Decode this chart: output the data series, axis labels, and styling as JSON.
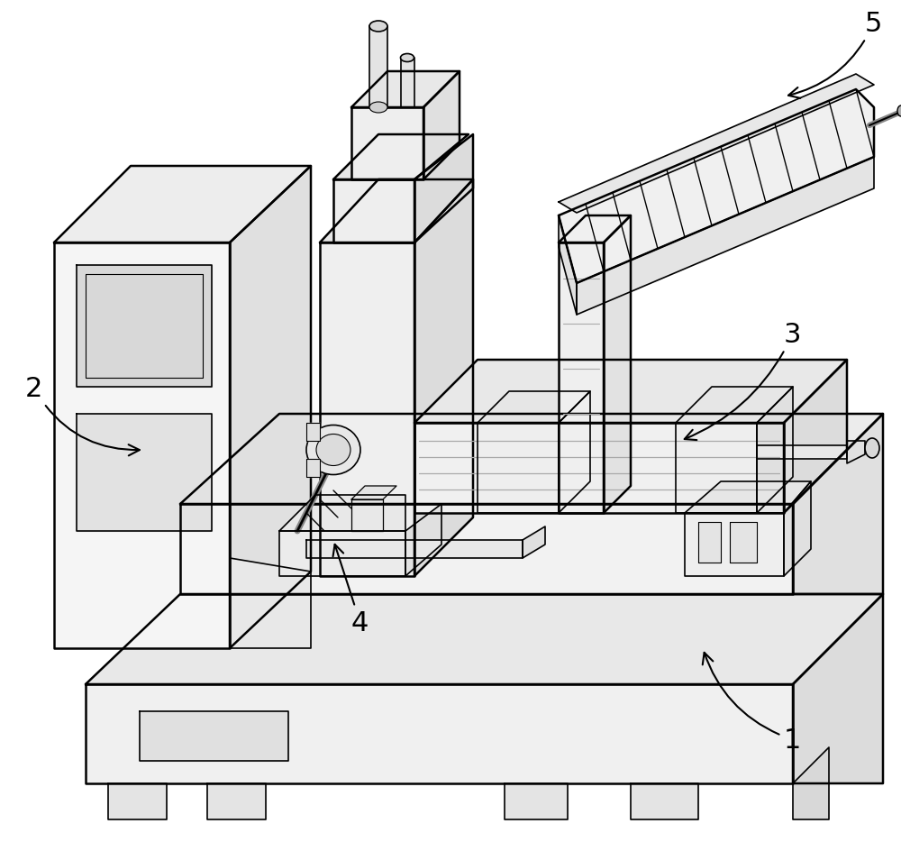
{
  "background_color": "#ffffff",
  "line_color": "#000000",
  "fig_width": 10.0,
  "fig_height": 9.45,
  "label_fontsize": 22,
  "lw_main": 1.2,
  "lw_thick": 1.8
}
